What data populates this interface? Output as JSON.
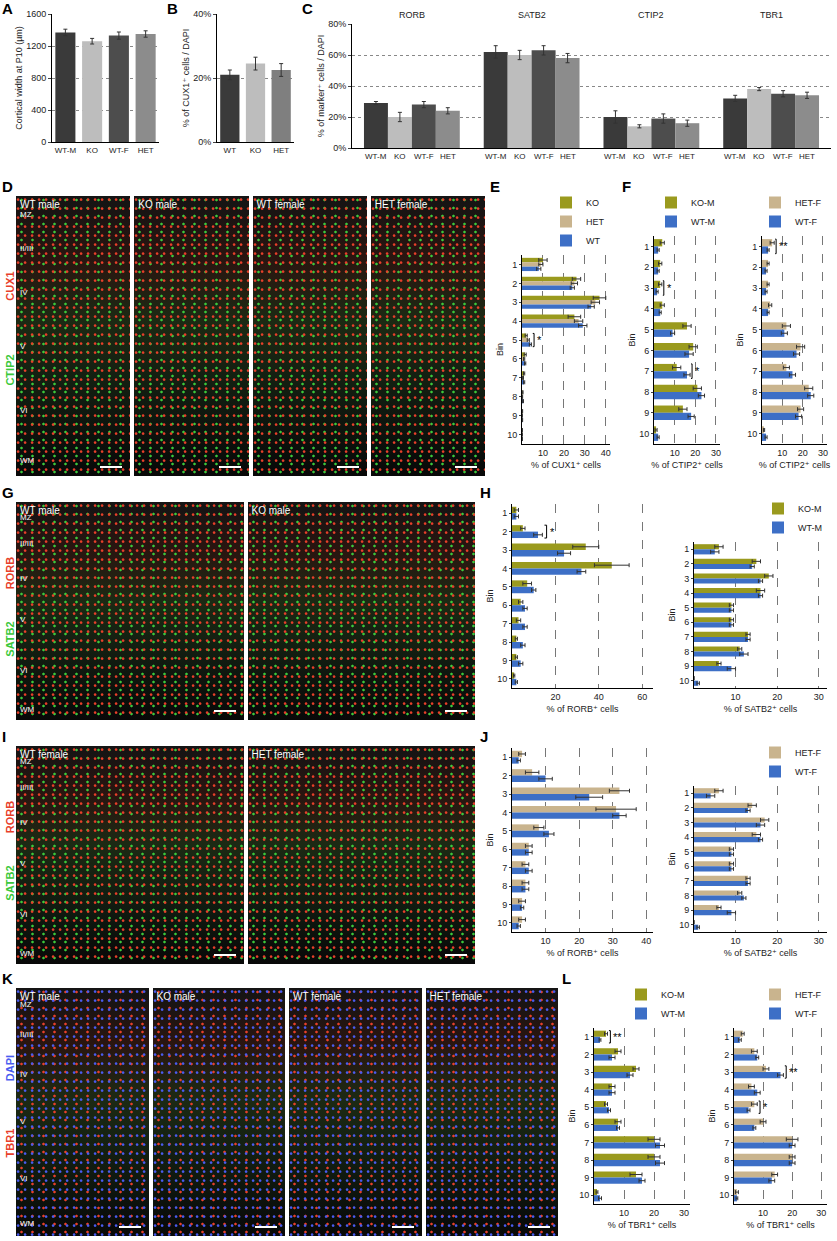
{
  "chart_data": [
    {
      "panel": "A",
      "type": "bar",
      "categories": [
        "WT-M",
        "KO",
        "WT-F",
        "HET"
      ],
      "values": [
        1370,
        1260,
        1330,
        1350
      ],
      "errors": [
        40,
        35,
        45,
        40
      ],
      "colors": [
        "#3a3a3a",
        "#bdbdbd",
        "#4d4d4d",
        "#8c8c8c"
      ],
      "y_label": "Cortical width at P10 (µm)",
      "ylim": [
        0,
        1600
      ],
      "yticks": [
        0,
        400,
        800,
        1200,
        1600
      ],
      "grid": true
    },
    {
      "panel": "B",
      "type": "bar",
      "categories": [
        "WT",
        "KO",
        "HET"
      ],
      "values": [
        21,
        24.5,
        22.5
      ],
      "errors": [
        1.5,
        2,
        2
      ],
      "colors": [
        "#3a3a3a",
        "#bdbdbd",
        "#7f7f7f"
      ],
      "y_label": "% of CUX1⁺ cells / DAPI",
      "ylim": [
        0,
        40
      ],
      "yticks": [
        {
          "value": 0,
          "label": "0%"
        },
        {
          "value": 20,
          "label": "20%"
        },
        {
          "value": 40,
          "label": "40%"
        }
      ],
      "grid": true
    },
    {
      "panel": "C",
      "type": "bar",
      "categories": [
        "RORB",
        "SATB2",
        "CTIP2",
        "TBR1"
      ],
      "series": [
        {
          "name": "WT-M",
          "color": "#3a3a3a",
          "values": [
            29,
            62,
            20,
            32
          ],
          "errors": [
            1,
            4,
            4,
            2
          ]
        },
        {
          "name": "KO",
          "color": "#bdbdbd",
          "values": [
            20,
            60,
            14,
            38
          ],
          "errors": [
            3,
            3,
            1,
            1
          ]
        },
        {
          "name": "WT-F",
          "color": "#4d4d4d",
          "values": [
            28,
            63,
            19,
            35
          ],
          "errors": [
            2,
            3,
            3,
            2
          ]
        },
        {
          "name": "HET",
          "color": "#8c8c8c",
          "values": [
            24,
            58,
            16,
            34
          ],
          "errors": [
            2,
            3,
            2,
            2
          ]
        }
      ],
      "y_label": "% of marker⁺ cells / DAPI",
      "ylim": [
        0,
        80
      ],
      "yticks": [
        {
          "value": 0,
          "label": "0%"
        },
        {
          "value": 20,
          "label": "20%"
        },
        {
          "value": 40,
          "label": "40%"
        },
        {
          "value": 60,
          "label": "60%"
        },
        {
          "value": 80,
          "label": "80%"
        }
      ],
      "grid": true
    },
    {
      "panel": "E",
      "type": "bar",
      "orientation": "horizontal",
      "categories": [
        "1",
        "2",
        "3",
        "4",
        "5",
        "6",
        "7",
        "8",
        "9",
        "10"
      ],
      "series": [
        {
          "name": "KO",
          "color": "#9a9a1e",
          "values": [
            10,
            26,
            37,
            25,
            2,
            1.5,
            1,
            0.3,
            0.2,
            0.1
          ],
          "errors": [
            2,
            2,
            3,
            3,
            0.5,
            0.5,
            0.3,
            0.2,
            0.1,
            0.1
          ]
        },
        {
          "name": "HET",
          "color": "#c9b48e",
          "values": [
            9,
            25,
            35,
            27,
            3,
            1,
            0.5,
            0.2,
            0.1,
            0.1
          ],
          "errors": [
            1,
            1.5,
            2,
            2,
            0.5,
            0.3,
            0.2,
            0.1,
            0.1,
            0.1
          ]
        },
        {
          "name": "WT",
          "color": "#3d6fc6",
          "values": [
            8,
            24,
            33,
            29,
            4,
            1.5,
            1,
            0.5,
            0.2,
            0.1
          ],
          "errors": [
            1,
            1,
            1.5,
            2,
            0.5,
            0.3,
            0.3,
            0.2,
            0.1,
            0.1
          ]
        }
      ],
      "x_label": "% of CUX1⁺ cells",
      "y_label": "Bin",
      "xlim": [
        0,
        42
      ],
      "xticks": [
        10,
        20,
        30,
        40
      ],
      "grid": true,
      "legend": "top right",
      "significance": [
        {
          "bin": "5",
          "text": "*"
        }
      ]
    },
    {
      "panel": "F",
      "type": "bar",
      "orientation": "horizontal",
      "categories": [
        "1",
        "2",
        "3",
        "4",
        "5",
        "6",
        "7",
        "8",
        "9",
        "10"
      ],
      "series": [
        {
          "name": "KO-M",
          "color": "#9a9a1e",
          "values": [
            4,
            3,
            3,
            4,
            16,
            19,
            11,
            21,
            14,
            1
          ],
          "errors": [
            1,
            0.8,
            0.8,
            1,
            2,
            2,
            2,
            2,
            2,
            0.5
          ]
        },
        {
          "name": "WT-M",
          "color": "#3d6fc6",
          "values": [
            2,
            2,
            1.5,
            3,
            9,
            17,
            16,
            23,
            18,
            2
          ],
          "errors": [
            0.5,
            0.5,
            0.5,
            0.5,
            1,
            2,
            1.5,
            1.5,
            1.5,
            0.5
          ]
        }
      ],
      "x_label": "% of CTIP2⁺ cells",
      "y_label": "Bin",
      "xlim": [
        0,
        32
      ],
      "xticks": [
        10,
        20,
        30
      ],
      "grid": true,
      "legend": "top right",
      "significance": [
        {
          "bin": "3",
          "text": "*"
        },
        {
          "bin": "7",
          "text": "*"
        }
      ]
    },
    {
      "type": "bar",
      "orientation": "horizontal",
      "categories": [
        "1",
        "2",
        "3",
        "4",
        "5",
        "6",
        "7",
        "8",
        "9",
        "10"
      ],
      "series": [
        {
          "name": "HET-F",
          "color": "#c9b48e",
          "values": [
            5,
            3,
            3,
            4,
            12,
            19,
            12,
            23,
            19,
            1
          ],
          "errors": [
            1,
            0.5,
            0.5,
            0.8,
            2,
            2,
            1.5,
            2,
            1.5,
            0.3
          ]
        },
        {
          "name": "WT-F",
          "color": "#3d6fc6",
          "values": [
            3,
            2,
            2,
            3,
            11,
            17,
            15,
            24,
            18,
            2
          ],
          "errors": [
            0.5,
            0.5,
            0.5,
            0.5,
            1.5,
            1.5,
            1.5,
            1.5,
            1.5,
            0.5
          ]
        }
      ],
      "x_label": "% of CTIP2⁺ cells",
      "y_label": "Bin",
      "xlim": [
        0,
        32
      ],
      "xticks": [
        10,
        20,
        30
      ],
      "grid": true,
      "legend": "top right",
      "significance": [
        {
          "bin": "1",
          "text": "**"
        }
      ]
    },
    {
      "panel": "H",
      "type": "bar",
      "orientation": "horizontal",
      "categories": [
        "1",
        "2",
        "3",
        "4",
        "5",
        "6",
        "7",
        "8",
        "9",
        "10"
      ],
      "series": [
        {
          "name": "KO-M",
          "color": "#9a9a1e",
          "values": [
            2,
            5,
            34,
            46,
            7,
            4,
            3,
            2,
            2,
            1
          ],
          "errors": [
            1,
            1,
            6,
            8,
            2,
            1,
            1,
            0.5,
            0.5,
            0.3
          ]
        },
        {
          "name": "WT-M",
          "color": "#3d6fc6",
          "values": [
            2,
            12,
            24,
            32,
            10,
            6,
            6,
            5,
            4,
            2
          ],
          "errors": [
            1,
            2,
            3,
            2,
            1,
            1,
            1,
            1,
            1,
            0.5
          ]
        }
      ],
      "x_label": "% of RORB⁺ cells",
      "y_label": "Bin",
      "xlim": [
        0,
        65
      ],
      "xticks": [
        20,
        40,
        60
      ],
      "grid": true,
      "significance": [
        {
          "bin": "2",
          "text": "*"
        }
      ]
    },
    {
      "type": "bar",
      "orientation": "horizontal",
      "categories": [
        "1",
        "2",
        "3",
        "4",
        "5",
        "6",
        "7",
        "8",
        "9",
        "10"
      ],
      "series": [
        {
          "name": "KO-M",
          "color": "#9a9a1e",
          "values": [
            6,
            15,
            18,
            16,
            9,
            9,
            13,
            11,
            6,
            0
          ],
          "errors": [
            1,
            1,
            1,
            1,
            0.5,
            0.5,
            0.5,
            0.5,
            0.5,
            0
          ]
        },
        {
          "name": "WT-M",
          "color": "#3d6fc6",
          "values": [
            5,
            14,
            16,
            16,
            9,
            9,
            13,
            12,
            9,
            1
          ],
          "errors": [
            1,
            0.5,
            0.5,
            0.5,
            0.5,
            0.5,
            0.5,
            1,
            1,
            0.3
          ]
        }
      ],
      "x_label": "% of SATB2⁺ cells",
      "y_label": "Bin",
      "xlim": [
        0,
        32
      ],
      "xticks": [
        10,
        20,
        30
      ],
      "grid": true,
      "legend": "top right",
      "significance": []
    },
    {
      "panel": "J",
      "type": "bar",
      "orientation": "horizontal",
      "categories": [
        "1",
        "2",
        "3",
        "4",
        "5",
        "6",
        "7",
        "8",
        "9",
        "10"
      ],
      "series": [
        {
          "name": "HET-F",
          "color": "#c9b48e",
          "values": [
            3,
            6,
            32,
            31,
            8,
            5,
            4,
            4,
            3,
            3
          ],
          "errors": [
            1,
            2,
            3,
            6,
            1.5,
            1,
            1,
            1,
            1,
            1
          ]
        },
        {
          "name": "WT-F",
          "color": "#3d6fc6",
          "values": [
            2,
            10,
            23,
            32,
            11,
            5,
            5,
            4,
            3,
            2
          ],
          "errors": [
            0.5,
            2,
            4,
            2,
            1.5,
            1,
            1,
            1,
            0.5,
            0.5
          ]
        }
      ],
      "x_label": "% of RORB⁺ cells",
      "y_label": "Bin",
      "xlim": [
        0,
        42
      ],
      "xticks": [
        10,
        20,
        30,
        40
      ],
      "grid": true,
      "significance": []
    },
    {
      "type": "bar",
      "orientation": "horizontal",
      "categories": [
        "1",
        "2",
        "3",
        "4",
        "5",
        "6",
        "7",
        "8",
        "9",
        "10"
      ],
      "series": [
        {
          "name": "HET-F",
          "color": "#c9b48e",
          "values": [
            6,
            14,
            17,
            15,
            9,
            9,
            13,
            11,
            6,
            0
          ],
          "errors": [
            1,
            1,
            1,
            1,
            0.5,
            0.5,
            0.5,
            0.5,
            0.5,
            0
          ]
        },
        {
          "name": "WT-F",
          "color": "#3d6fc6",
          "values": [
            4,
            13,
            16,
            16,
            9,
            9,
            13,
            12,
            9,
            1
          ],
          "errors": [
            1,
            0.5,
            1,
            0.5,
            0.5,
            0.5,
            0.5,
            0.5,
            1,
            0.3
          ]
        }
      ],
      "x_label": "% of SATB2⁺ cells",
      "y_label": "Bin",
      "xlim": [
        0,
        32
      ],
      "xticks": [
        10,
        20,
        30
      ],
      "grid": true,
      "legend": "top right",
      "significance": []
    },
    {
      "panel": "L",
      "type": "bar",
      "orientation": "horizontal",
      "categories": [
        "1",
        "2",
        "3",
        "4",
        "5",
        "6",
        "7",
        "8",
        "9",
        "10"
      ],
      "series": [
        {
          "name": "KO-M",
          "color": "#9a9a1e",
          "values": [
            4,
            8,
            14,
            6,
            4,
            8,
            20,
            20,
            14,
            1
          ],
          "errors": [
            0.5,
            1,
            1,
            1,
            0.5,
            1,
            2,
            2,
            2,
            0.3
          ]
        },
        {
          "name": "WT-M",
          "color": "#3d6fc6",
          "values": [
            2,
            6,
            12,
            6,
            5,
            8,
            22,
            22,
            16,
            2
          ],
          "errors": [
            0.3,
            1,
            1,
            1,
            0.5,
            0.5,
            1.5,
            1.5,
            1,
            0.5
          ]
        }
      ],
      "x_label": "% of TBR1⁺ cells",
      "y_label": "Bin",
      "xlim": [
        0,
        32
      ],
      "xticks": [
        10,
        20,
        30
      ],
      "grid": true,
      "legend": "top right",
      "significance": [
        {
          "bin": "1",
          "text": "**"
        }
      ]
    },
    {
      "type": "bar",
      "orientation": "horizontal",
      "categories": [
        "1",
        "2",
        "3",
        "4",
        "5",
        "6",
        "7",
        "8",
        "9",
        "10"
      ],
      "series": [
        {
          "name": "HET-F",
          "color": "#c9b48e",
          "values": [
            3,
            7,
            11,
            6,
            7,
            10,
            20,
            20,
            14,
            1
          ],
          "errors": [
            0.5,
            1,
            1,
            1,
            1,
            1,
            2,
            1,
            1,
            0.5
          ]
        },
        {
          "name": "WT-F",
          "color": "#3d6fc6",
          "values": [
            2,
            8,
            16,
            8,
            5,
            7,
            20,
            20,
            13,
            1
          ],
          "errors": [
            0.5,
            0.5,
            1,
            1,
            0.5,
            0.5,
            1,
            1,
            1,
            0.3
          ]
        }
      ],
      "x_label": "% of TBR1⁺ cells",
      "y_label": "Bin",
      "xlim": [
        0,
        32
      ],
      "xticks": [
        10,
        20,
        30
      ],
      "grid": true,
      "legend": "top right",
      "significance": [
        {
          "bin": "3",
          "text": "**"
        },
        {
          "bin": "5",
          "text": "*"
        }
      ]
    }
  ],
  "images": [
    {
      "panel": "D",
      "tiles": [
        "WT male",
        "KO male",
        "WT female",
        "HET female"
      ],
      "stains": [
        {
          "text": "CUX1",
          "color": "#e8402a"
        },
        {
          "text": "CTIP2",
          "color": "#3cc83c"
        }
      ],
      "layers": [
        "MZ",
        "II/III",
        "IV",
        "V",
        "VI",
        "WM"
      ]
    },
    {
      "panel": "G",
      "tiles": [
        "WT male",
        "KO male"
      ],
      "stains": [
        {
          "text": "RORB",
          "color": "#e8402a"
        },
        {
          "text": "SATB2",
          "color": "#3cc83c"
        }
      ],
      "layers": [
        "MZ",
        "II/III",
        "IV",
        "V",
        "VI",
        "WM"
      ]
    },
    {
      "panel": "I",
      "tiles": [
        "WT female",
        "HET female"
      ],
      "stains": [
        {
          "text": "RORB",
          "color": "#e8402a"
        },
        {
          "text": "SATB2",
          "color": "#3cc83c"
        }
      ],
      "layers": [
        "MZ",
        "II/III",
        "IV",
        "V",
        "VI",
        "WM"
      ]
    },
    {
      "panel": "K",
      "tiles": [
        "WT male",
        "KO male",
        "WT female",
        "HET female"
      ],
      "stains": [
        {
          "text": "DAPI",
          "color": "#4a5cf0"
        },
        {
          "text": "TBR1",
          "color": "#e8402a"
        }
      ],
      "layers": [
        "MZ",
        "II/III",
        "IV",
        "V",
        "VI",
        "WM"
      ]
    }
  ]
}
